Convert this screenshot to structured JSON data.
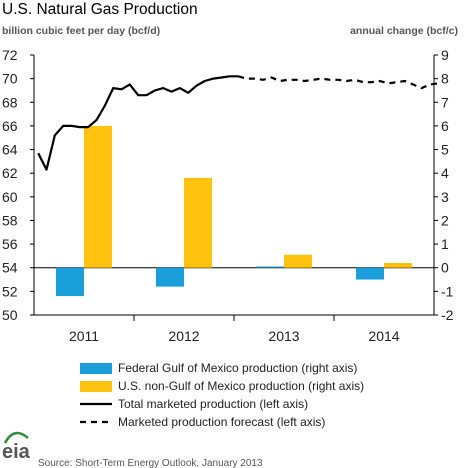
{
  "chart_data": {
    "type": "bar+line",
    "title": "U.S. Natural Gas Production",
    "left_axis_label": "billion cubic feet per day (bcf/d)",
    "right_axis_label": "annual change (bcf/c)",
    "left_ylim": [
      50,
      72
    ],
    "left_ticks": [
      50,
      52,
      54,
      56,
      58,
      60,
      62,
      64,
      66,
      68,
      70,
      72
    ],
    "right_ylim": [
      -2,
      9
    ],
    "right_ticks": [
      -2,
      -1,
      0,
      1,
      2,
      3,
      4,
      5,
      6,
      7,
      8,
      9
    ],
    "categories": [
      "2011",
      "2012",
      "2013",
      "2014"
    ],
    "bar_series": [
      {
        "name": "Federal Gulf of Mexico production (right axis)",
        "color": "#1a9fdb",
        "values": [
          -1.2,
          -0.8,
          0.05,
          -0.5
        ]
      },
      {
        "name": "U.S. non-Gulf of Mexico production (right axis)",
        "color": "#ffc20e",
        "values": [
          6.0,
          3.8,
          0.55,
          0.2
        ]
      }
    ],
    "line_series": [
      {
        "name": "Total marketed  production (left axis)",
        "style": "solid",
        "color": "#000000",
        "values": [
          63.7,
          62.3,
          65.2,
          66.0,
          66.0,
          65.9,
          65.9,
          66.5,
          67.7,
          69.2,
          69.1,
          69.5,
          68.6,
          68.6,
          69.0,
          69.2,
          68.9,
          69.2,
          68.8,
          69.4,
          69.8,
          70.0,
          70.1,
          70.2,
          70.2
        ]
      },
      {
        "name": "Marketed production forecast (left axis)",
        "style": "dashed",
        "color": "#000000",
        "values": [
          null,
          null,
          null,
          null,
          null,
          null,
          null,
          null,
          null,
          null,
          null,
          null,
          null,
          null,
          null,
          null,
          null,
          null,
          null,
          null,
          null,
          null,
          null,
          null,
          70.2,
          70.0,
          70.0,
          69.9,
          70.1,
          69.8,
          69.9,
          69.9,
          69.8,
          69.9,
          70.0,
          69.9,
          69.9,
          69.8,
          69.9,
          69.7,
          69.7,
          69.8,
          69.6,
          69.7,
          69.8,
          69.5,
          69.2,
          69.5,
          69.6
        ]
      }
    ],
    "legend_position": "bottom",
    "grid": false
  },
  "source": "Source: Short-Term Energy Outlook, January 2013",
  "logo_text": "eia"
}
